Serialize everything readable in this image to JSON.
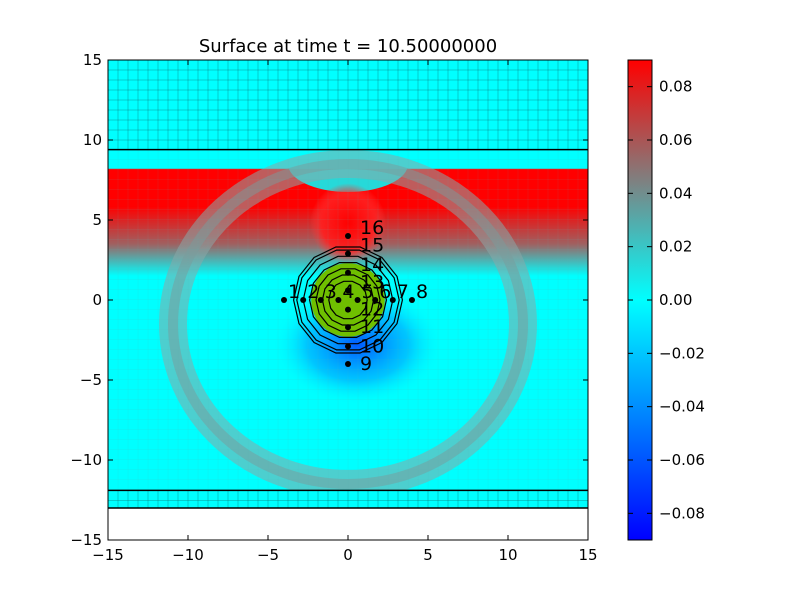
{
  "chart_data": {
    "type": "heatmap",
    "title": "Surface at time t =    10.50000000",
    "xlabel": "",
    "ylabel": "",
    "xlim": [
      -15,
      15
    ],
    "ylim": [
      -15,
      15
    ],
    "x_ticks": [
      -15,
      -10,
      -5,
      0,
      5,
      10,
      15
    ],
    "y_ticks": [
      -15,
      -10,
      -5,
      0,
      5,
      10,
      15
    ],
    "x_tick_labels": [
      "−15",
      "−10",
      "−5",
      "0",
      "5",
      "10",
      "15"
    ],
    "y_tick_labels": [
      "−15",
      "−10",
      "−5",
      "0",
      "5",
      "10",
      "15"
    ],
    "colorbar": {
      "min": -0.09,
      "max": 0.09,
      "ticks": [
        0.08,
        0.06,
        0.04,
        0.02,
        0.0,
        -0.02,
        -0.04,
        -0.06,
        -0.08
      ],
      "tick_labels": [
        "0.08",
        "0.06",
        "0.04",
        "0.02",
        "0.00",
        "−0.02",
        "−0.04",
        "−0.06",
        "−0.08"
      ],
      "colors": [
        "#0000ff",
        "#00ffff",
        "#ff0000"
      ]
    },
    "domain_ymin": -13,
    "grid_patches": [
      {
        "ylim": [
          9.4,
          15
        ],
        "color": "#00ffff"
      },
      {
        "ylim": [
          -13,
          -11.9
        ],
        "color": "#00ffff"
      }
    ],
    "patch_boundaries": [
      9.4,
      -11.9
    ],
    "gauges": [
      {
        "label": "1",
        "x": -4.0,
        "y": 0
      },
      {
        "label": "2",
        "x": -2.8,
        "y": 0
      },
      {
        "label": "3",
        "x": -1.7,
        "y": 0
      },
      {
        "label": "4",
        "x": -0.6,
        "y": 0
      },
      {
        "label": "5",
        "x": 0.6,
        "y": 0
      },
      {
        "label": "6",
        "x": 1.7,
        "y": 0
      },
      {
        "label": "7",
        "x": 2.8,
        "y": 0
      },
      {
        "label": "8",
        "x": 4.0,
        "y": 0
      },
      {
        "label": "9",
        "x": 0,
        "y": -4.0
      },
      {
        "label": "10",
        "x": 0,
        "y": -2.9
      },
      {
        "label": "11",
        "x": 0,
        "y": -1.7
      },
      {
        "label": "12",
        "x": 0,
        "y": -0.6
      },
      {
        "label": "13",
        "x": 0,
        "y": 0.6
      },
      {
        "label": "14",
        "x": 0,
        "y": 1.7
      },
      {
        "label": "15",
        "x": 0,
        "y": 2.9
      },
      {
        "label": "16",
        "x": 0,
        "y": 4.0
      }
    ],
    "contour_center": [
      0,
      0
    ],
    "contour_radii": [
      1.2,
      1.6,
      2.0,
      2.4,
      2.8,
      3.2,
      3.4
    ],
    "contour_fill_radius": 2.3,
    "contour_fill_color": "#6fbf00"
  }
}
